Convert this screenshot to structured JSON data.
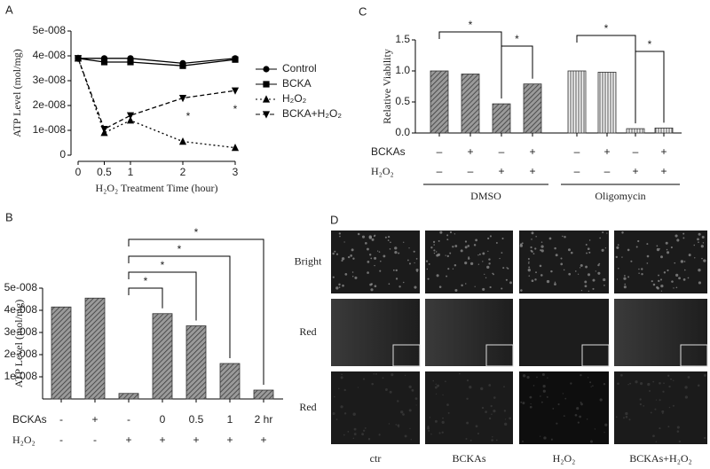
{
  "chart_data": [
    {
      "type": "line",
      "label": "A",
      "x": [
        0,
        0.5,
        1,
        2,
        3
      ],
      "xlim": [
        0,
        3
      ],
      "xticks": [
        0,
        0.5,
        1,
        2,
        3
      ],
      "ylim": [
        0,
        5e-08
      ],
      "yticks": [
        0,
        {
          "value": 1e-08,
          "label": "1e-008"
        },
        {
          "value": 2e-08,
          "label": "2e-008"
        },
        {
          "value": 3e-08,
          "label": "3e-008"
        },
        {
          "value": 4e-08,
          "label": "4e-008"
        },
        {
          "value": 5e-08,
          "label": "5e-008"
        }
      ],
      "y_label": "ATP Level (mol/mg)",
      "x_label": "H₂O₂ Treatment Time (hour)",
      "series": [
        {
          "name": "Control",
          "color": "#000000",
          "marker": "circle",
          "dash": "solid",
          "values": [
            3.9e-08,
            3.9e-08,
            3.9e-08,
            3.7e-08,
            3.9e-08
          ]
        },
        {
          "name": "BCKA",
          "color": "#000000",
          "marker": "square",
          "dash": "solid",
          "values": [
            3.9e-08,
            3.75e-08,
            3.75e-08,
            3.6e-08,
            3.85e-08
          ]
        },
        {
          "name": "H₂O₂",
          "color": "#000000",
          "marker": "triangle-up",
          "dash": "dotted",
          "values": [
            3.9e-08,
            9e-09,
            1.4e-08,
            5.5e-09,
            3e-09
          ]
        },
        {
          "name": "BCKA+H₂O₂",
          "color": "#000000",
          "marker": "triangle-down",
          "dash": "dashed",
          "values": [
            3.9e-08,
            1.05e-08,
            1.6e-08,
            2.3e-08,
            2.6e-08
          ]
        }
      ],
      "annotations": [
        "*",
        "*"
      ]
    },
    {
      "type": "bar",
      "label": "B",
      "values": [
        4.15e-08,
        4.55e-08,
        2.5e-09,
        3.85e-08,
        3.3e-08,
        1.6e-08,
        4e-09
      ],
      "color": "#333333",
      "pattern": "hatch",
      "ylim": [
        0,
        5e-08
      ],
      "yticks": [
        {
          "value": 1e-08,
          "label": "1e-008"
        },
        {
          "value": 2e-08,
          "label": "2e-008"
        },
        {
          "value": 3e-08,
          "label": "3e-008"
        },
        {
          "value": 4e-08,
          "label": "4e-008"
        },
        {
          "value": 5e-08,
          "label": "5e-008"
        }
      ],
      "y_label": "ATP Level (mol/mg)",
      "label_rows": [
        {
          "name": "BCKAs",
          "labels": [
            "-",
            "+",
            "-",
            "0",
            "0.5",
            "1",
            "2 hr"
          ]
        },
        {
          "name": "H₂O₂",
          "labels": [
            "-",
            "-",
            "+",
            "+",
            "+",
            "+",
            "+"
          ]
        }
      ],
      "comparisons": [
        {
          "from": 2,
          "to": 3,
          "label": "*"
        },
        {
          "from": 2,
          "to": 4,
          "label": "*"
        },
        {
          "from": 2,
          "to": 5,
          "label": "*"
        },
        {
          "from": 2,
          "to": 6,
          "label": "*"
        }
      ]
    },
    {
      "type": "bar",
      "label": "C",
      "values": [
        1.0,
        0.95,
        0.47,
        0.79,
        1.0,
        0.98,
        0.07,
        0.08
      ],
      "color": "#333333",
      "ylim": [
        0,
        1.5
      ],
      "yticks": [
        {
          "value": 0,
          "label": "0.0"
        },
        0.5,
        {
          "value": 1,
          "label": "1.0"
        },
        1.5
      ],
      "y_label": "Relative Viability",
      "label_rows": [
        {
          "name": "BCKAs",
          "labels": [
            "–",
            "+",
            "–",
            "+",
            "–",
            "+",
            "–",
            "+"
          ]
        },
        {
          "name": "H₂O₂",
          "labels": [
            "–",
            "–",
            "+",
            "+",
            "–",
            "–",
            "+",
            "+"
          ]
        }
      ],
      "groups": [
        {
          "name": "DMSO",
          "from": 0,
          "to": 3,
          "pattern": "hatch"
        },
        {
          "name": "Oligomycin",
          "from": 4,
          "to": 7,
          "pattern": "stripes"
        }
      ],
      "comparisons": [
        {
          "from": 0,
          "to": 2,
          "label": "*"
        },
        {
          "from": 2,
          "to": 3,
          "label": "*"
        },
        {
          "from": 4,
          "to": 6,
          "label": "*"
        },
        {
          "from": 6,
          "to": 7,
          "label": "*"
        }
      ]
    }
  ],
  "image_panel": {
    "label": "D",
    "rows": [
      "Bright",
      "Red",
      "Red"
    ],
    "columns": [
      "ctr",
      "BCKAs",
      "H₂O₂",
      "BCKAs+H₂O₂"
    ]
  }
}
